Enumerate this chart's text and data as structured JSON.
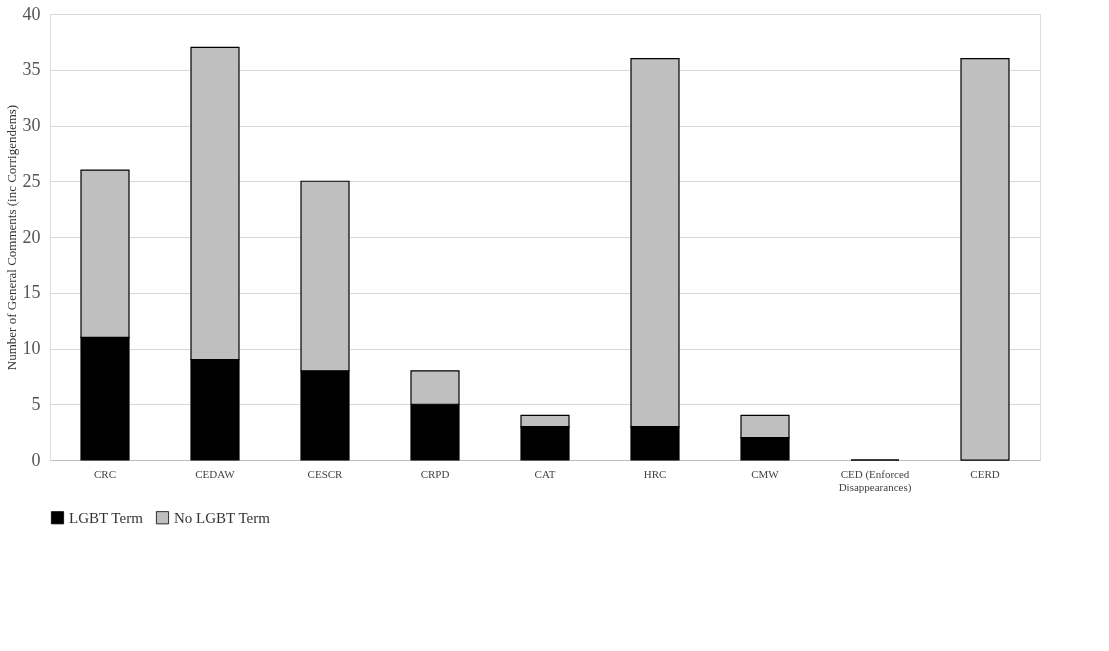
{
  "chart_data": {
    "type": "bar",
    "stacked": true,
    "ylabel": "Number of General Comments (inc Corrigendems)",
    "categories": [
      "CRC",
      "CEDAW",
      "CESCR",
      "CRPD",
      "CAT",
      "HRC",
      "CMW",
      "CED (Enforced Disappearances)",
      "CERD"
    ],
    "series": [
      {
        "name": "LGBT Term",
        "color": "#000000",
        "values": [
          11,
          9,
          8,
          5,
          3,
          3,
          2,
          0,
          0
        ]
      },
      {
        "name": "No LGBT Term",
        "color": "#bfbfbf",
        "values": [
          15,
          28,
          17,
          3,
          1,
          33,
          2,
          0,
          36
        ]
      }
    ],
    "ylim": [
      0,
      40
    ],
    "yticks": [
      0,
      5,
      10,
      15,
      20,
      25,
      30,
      35,
      40
    ],
    "grid": "y",
    "legend": "bottom"
  }
}
